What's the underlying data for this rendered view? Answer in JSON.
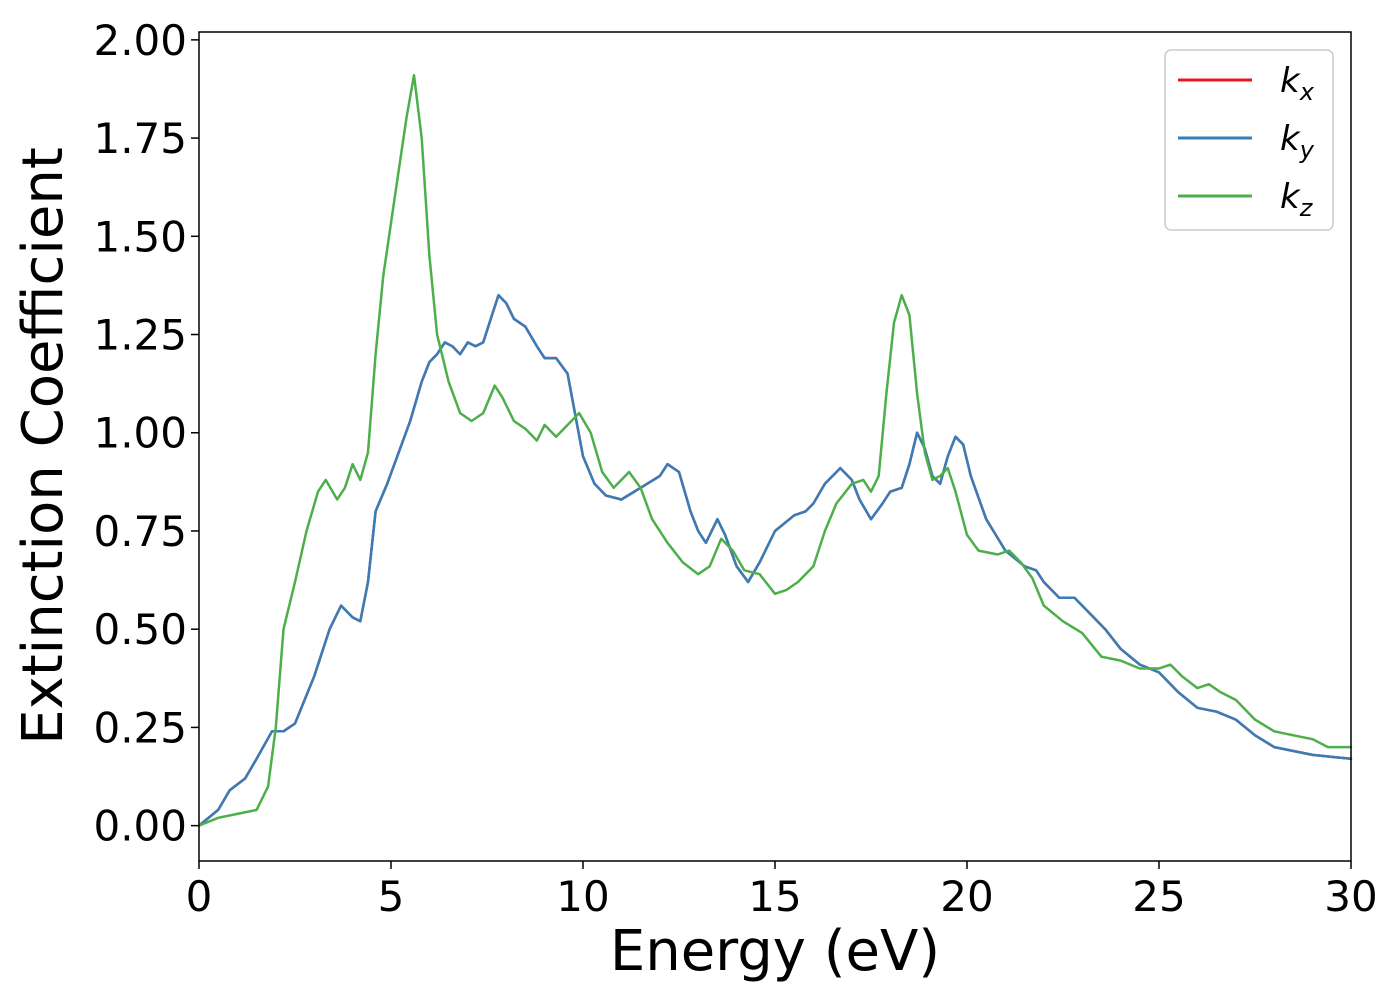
{
  "chart_data": {
    "type": "line",
    "xlabel": "Energy (eV)",
    "ylabel": "Extinction Coefficient",
    "xlim": [
      0,
      30
    ],
    "ylim": [
      -0.09,
      2.02
    ],
    "x_ticks": [
      "0",
      "5",
      "10",
      "15",
      "20",
      "25",
      "30"
    ],
    "x_tick_values": [
      0,
      5,
      10,
      15,
      20,
      25,
      30
    ],
    "y_ticks": [
      "0.00",
      "0.25",
      "0.50",
      "0.75",
      "1.00",
      "1.25",
      "1.50",
      "1.75",
      "2.00"
    ],
    "y_tick_values": [
      0,
      0.25,
      0.5,
      0.75,
      1.0,
      1.25,
      1.5,
      1.75,
      2.0
    ],
    "grid": false,
    "legend_position": "top-right",
    "series": [
      {
        "name": "k_x",
        "legend_base": "k",
        "legend_sub": "x",
        "color": "#e41a1c",
        "points": [
          [
            0,
            0
          ],
          [
            0.5,
            0.04
          ],
          [
            0.8,
            0.09
          ],
          [
            1.2,
            0.12
          ],
          [
            1.5,
            0.17
          ],
          [
            1.9,
            0.24
          ],
          [
            2.2,
            0.24
          ],
          [
            2.5,
            0.26
          ],
          [
            3.0,
            0.38
          ],
          [
            3.4,
            0.5
          ],
          [
            3.7,
            0.56
          ],
          [
            4.0,
            0.53
          ],
          [
            4.2,
            0.52
          ],
          [
            4.4,
            0.62
          ],
          [
            4.6,
            0.8
          ],
          [
            4.9,
            0.87
          ],
          [
            5.2,
            0.95
          ],
          [
            5.5,
            1.03
          ],
          [
            5.8,
            1.13
          ],
          [
            6.0,
            1.18
          ],
          [
            6.2,
            1.2
          ],
          [
            6.4,
            1.23
          ],
          [
            6.6,
            1.22
          ],
          [
            6.8,
            1.2
          ],
          [
            7.0,
            1.23
          ],
          [
            7.2,
            1.22
          ],
          [
            7.4,
            1.23
          ],
          [
            7.6,
            1.29
          ],
          [
            7.8,
            1.35
          ],
          [
            8.0,
            1.33
          ],
          [
            8.2,
            1.29
          ],
          [
            8.5,
            1.27
          ],
          [
            8.8,
            1.22
          ],
          [
            9.0,
            1.19
          ],
          [
            9.3,
            1.19
          ],
          [
            9.6,
            1.15
          ],
          [
            10.0,
            0.94
          ],
          [
            10.3,
            0.87
          ],
          [
            10.6,
            0.84
          ],
          [
            11.0,
            0.83
          ],
          [
            11.5,
            0.86
          ],
          [
            12.0,
            0.89
          ],
          [
            12.2,
            0.92
          ],
          [
            12.5,
            0.9
          ],
          [
            12.8,
            0.8
          ],
          [
            13.0,
            0.75
          ],
          [
            13.2,
            0.72
          ],
          [
            13.5,
            0.78
          ],
          [
            13.7,
            0.74
          ],
          [
            14.0,
            0.66
          ],
          [
            14.3,
            0.62
          ],
          [
            14.6,
            0.67
          ],
          [
            15.0,
            0.75
          ],
          [
            15.5,
            0.79
          ],
          [
            15.8,
            0.8
          ],
          [
            16.0,
            0.82
          ],
          [
            16.3,
            0.87
          ],
          [
            16.7,
            0.91
          ],
          [
            17.0,
            0.88
          ],
          [
            17.2,
            0.83
          ],
          [
            17.5,
            0.78
          ],
          [
            17.8,
            0.82
          ],
          [
            18.0,
            0.85
          ],
          [
            18.3,
            0.86
          ],
          [
            18.5,
            0.92
          ],
          [
            18.7,
            1.0
          ],
          [
            18.9,
            0.96
          ],
          [
            19.1,
            0.89
          ],
          [
            19.3,
            0.87
          ],
          [
            19.5,
            0.94
          ],
          [
            19.7,
            0.99
          ],
          [
            19.9,
            0.97
          ],
          [
            20.1,
            0.89
          ],
          [
            20.5,
            0.78
          ],
          [
            21.0,
            0.7
          ],
          [
            21.5,
            0.66
          ],
          [
            21.8,
            0.65
          ],
          [
            22.0,
            0.62
          ],
          [
            22.4,
            0.58
          ],
          [
            22.8,
            0.58
          ],
          [
            23.2,
            0.54
          ],
          [
            23.6,
            0.5
          ],
          [
            24.0,
            0.45
          ],
          [
            24.5,
            0.41
          ],
          [
            25.0,
            0.39
          ],
          [
            25.5,
            0.34
          ],
          [
            26.0,
            0.3
          ],
          [
            26.5,
            0.29
          ],
          [
            27.0,
            0.27
          ],
          [
            27.5,
            0.23
          ],
          [
            28.0,
            0.2
          ],
          [
            28.5,
            0.19
          ],
          [
            29.0,
            0.18
          ],
          [
            29.5,
            0.175
          ],
          [
            30.0,
            0.17
          ]
        ]
      },
      {
        "name": "k_y",
        "legend_base": "k",
        "legend_sub": "y",
        "color": "#377eb8",
        "points": [
          [
            0,
            0
          ],
          [
            0.5,
            0.04
          ],
          [
            0.8,
            0.09
          ],
          [
            1.2,
            0.12
          ],
          [
            1.5,
            0.17
          ],
          [
            1.9,
            0.24
          ],
          [
            2.2,
            0.24
          ],
          [
            2.5,
            0.26
          ],
          [
            3.0,
            0.38
          ],
          [
            3.4,
            0.5
          ],
          [
            3.7,
            0.56
          ],
          [
            4.0,
            0.53
          ],
          [
            4.2,
            0.52
          ],
          [
            4.4,
            0.62
          ],
          [
            4.6,
            0.8
          ],
          [
            4.9,
            0.87
          ],
          [
            5.2,
            0.95
          ],
          [
            5.5,
            1.03
          ],
          [
            5.8,
            1.13
          ],
          [
            6.0,
            1.18
          ],
          [
            6.2,
            1.2
          ],
          [
            6.4,
            1.23
          ],
          [
            6.6,
            1.22
          ],
          [
            6.8,
            1.2
          ],
          [
            7.0,
            1.23
          ],
          [
            7.2,
            1.22
          ],
          [
            7.4,
            1.23
          ],
          [
            7.6,
            1.29
          ],
          [
            7.8,
            1.35
          ],
          [
            8.0,
            1.33
          ],
          [
            8.2,
            1.29
          ],
          [
            8.5,
            1.27
          ],
          [
            8.8,
            1.22
          ],
          [
            9.0,
            1.19
          ],
          [
            9.3,
            1.19
          ],
          [
            9.6,
            1.15
          ],
          [
            10.0,
            0.94
          ],
          [
            10.3,
            0.87
          ],
          [
            10.6,
            0.84
          ],
          [
            11.0,
            0.83
          ],
          [
            11.5,
            0.86
          ],
          [
            12.0,
            0.89
          ],
          [
            12.2,
            0.92
          ],
          [
            12.5,
            0.9
          ],
          [
            12.8,
            0.8
          ],
          [
            13.0,
            0.75
          ],
          [
            13.2,
            0.72
          ],
          [
            13.5,
            0.78
          ],
          [
            13.7,
            0.74
          ],
          [
            14.0,
            0.66
          ],
          [
            14.3,
            0.62
          ],
          [
            14.6,
            0.67
          ],
          [
            15.0,
            0.75
          ],
          [
            15.5,
            0.79
          ],
          [
            15.8,
            0.8
          ],
          [
            16.0,
            0.82
          ],
          [
            16.3,
            0.87
          ],
          [
            16.7,
            0.91
          ],
          [
            17.0,
            0.88
          ],
          [
            17.2,
            0.83
          ],
          [
            17.5,
            0.78
          ],
          [
            17.8,
            0.82
          ],
          [
            18.0,
            0.85
          ],
          [
            18.3,
            0.86
          ],
          [
            18.5,
            0.92
          ],
          [
            18.7,
            1.0
          ],
          [
            18.9,
            0.96
          ],
          [
            19.1,
            0.89
          ],
          [
            19.3,
            0.87
          ],
          [
            19.5,
            0.94
          ],
          [
            19.7,
            0.99
          ],
          [
            19.9,
            0.97
          ],
          [
            20.1,
            0.89
          ],
          [
            20.5,
            0.78
          ],
          [
            21.0,
            0.7
          ],
          [
            21.5,
            0.66
          ],
          [
            21.8,
            0.65
          ],
          [
            22.0,
            0.62
          ],
          [
            22.4,
            0.58
          ],
          [
            22.8,
            0.58
          ],
          [
            23.2,
            0.54
          ],
          [
            23.6,
            0.5
          ],
          [
            24.0,
            0.45
          ],
          [
            24.5,
            0.41
          ],
          [
            25.0,
            0.39
          ],
          [
            25.5,
            0.34
          ],
          [
            26.0,
            0.3
          ],
          [
            26.5,
            0.29
          ],
          [
            27.0,
            0.27
          ],
          [
            27.5,
            0.23
          ],
          [
            28.0,
            0.2
          ],
          [
            28.5,
            0.19
          ],
          [
            29.0,
            0.18
          ],
          [
            29.5,
            0.175
          ],
          [
            30.0,
            0.17
          ]
        ]
      },
      {
        "name": "k_z",
        "legend_base": "k",
        "legend_sub": "z",
        "color": "#4daf4a",
        "points": [
          [
            0,
            0
          ],
          [
            0.5,
            0.02
          ],
          [
            1.0,
            0.03
          ],
          [
            1.5,
            0.04
          ],
          [
            1.8,
            0.1
          ],
          [
            2.0,
            0.25
          ],
          [
            2.2,
            0.5
          ],
          [
            2.5,
            0.62
          ],
          [
            2.8,
            0.75
          ],
          [
            3.1,
            0.85
          ],
          [
            3.3,
            0.88
          ],
          [
            3.6,
            0.83
          ],
          [
            3.8,
            0.86
          ],
          [
            4.0,
            0.92
          ],
          [
            4.2,
            0.88
          ],
          [
            4.4,
            0.95
          ],
          [
            4.6,
            1.2
          ],
          [
            4.8,
            1.4
          ],
          [
            5.1,
            1.6
          ],
          [
            5.4,
            1.8
          ],
          [
            5.6,
            1.91
          ],
          [
            5.8,
            1.75
          ],
          [
            6.0,
            1.45
          ],
          [
            6.2,
            1.25
          ],
          [
            6.5,
            1.13
          ],
          [
            6.8,
            1.05
          ],
          [
            7.1,
            1.03
          ],
          [
            7.4,
            1.05
          ],
          [
            7.7,
            1.12
          ],
          [
            7.9,
            1.09
          ],
          [
            8.2,
            1.03
          ],
          [
            8.5,
            1.01
          ],
          [
            8.8,
            0.98
          ],
          [
            9.0,
            1.02
          ],
          [
            9.3,
            0.99
          ],
          [
            9.6,
            1.02
          ],
          [
            9.9,
            1.05
          ],
          [
            10.2,
            1.0
          ],
          [
            10.5,
            0.9
          ],
          [
            10.8,
            0.86
          ],
          [
            11.2,
            0.9
          ],
          [
            11.5,
            0.86
          ],
          [
            11.8,
            0.78
          ],
          [
            12.2,
            0.72
          ],
          [
            12.6,
            0.67
          ],
          [
            13.0,
            0.64
          ],
          [
            13.3,
            0.66
          ],
          [
            13.6,
            0.73
          ],
          [
            13.9,
            0.7
          ],
          [
            14.2,
            0.65
          ],
          [
            14.6,
            0.64
          ],
          [
            15.0,
            0.59
          ],
          [
            15.3,
            0.6
          ],
          [
            15.6,
            0.62
          ],
          [
            16.0,
            0.66
          ],
          [
            16.3,
            0.75
          ],
          [
            16.6,
            0.82
          ],
          [
            17.0,
            0.87
          ],
          [
            17.3,
            0.88
          ],
          [
            17.5,
            0.85
          ],
          [
            17.7,
            0.89
          ],
          [
            17.9,
            1.1
          ],
          [
            18.1,
            1.28
          ],
          [
            18.3,
            1.35
          ],
          [
            18.5,
            1.3
          ],
          [
            18.7,
            1.1
          ],
          [
            18.9,
            0.95
          ],
          [
            19.1,
            0.88
          ],
          [
            19.3,
            0.89
          ],
          [
            19.5,
            0.91
          ],
          [
            19.7,
            0.85
          ],
          [
            20.0,
            0.74
          ],
          [
            20.3,
            0.7
          ],
          [
            20.8,
            0.69
          ],
          [
            21.1,
            0.7
          ],
          [
            21.4,
            0.67
          ],
          [
            21.7,
            0.63
          ],
          [
            22.0,
            0.56
          ],
          [
            22.5,
            0.52
          ],
          [
            23.0,
            0.49
          ],
          [
            23.5,
            0.43
          ],
          [
            24.0,
            0.42
          ],
          [
            24.5,
            0.4
          ],
          [
            25.0,
            0.4
          ],
          [
            25.3,
            0.41
          ],
          [
            25.6,
            0.38
          ],
          [
            26.0,
            0.35
          ],
          [
            26.3,
            0.36
          ],
          [
            26.6,
            0.34
          ],
          [
            27.0,
            0.32
          ],
          [
            27.5,
            0.27
          ],
          [
            28.0,
            0.24
          ],
          [
            28.5,
            0.23
          ],
          [
            29.0,
            0.22
          ],
          [
            29.4,
            0.2
          ],
          [
            30.0,
            0.2
          ]
        ]
      }
    ]
  }
}
